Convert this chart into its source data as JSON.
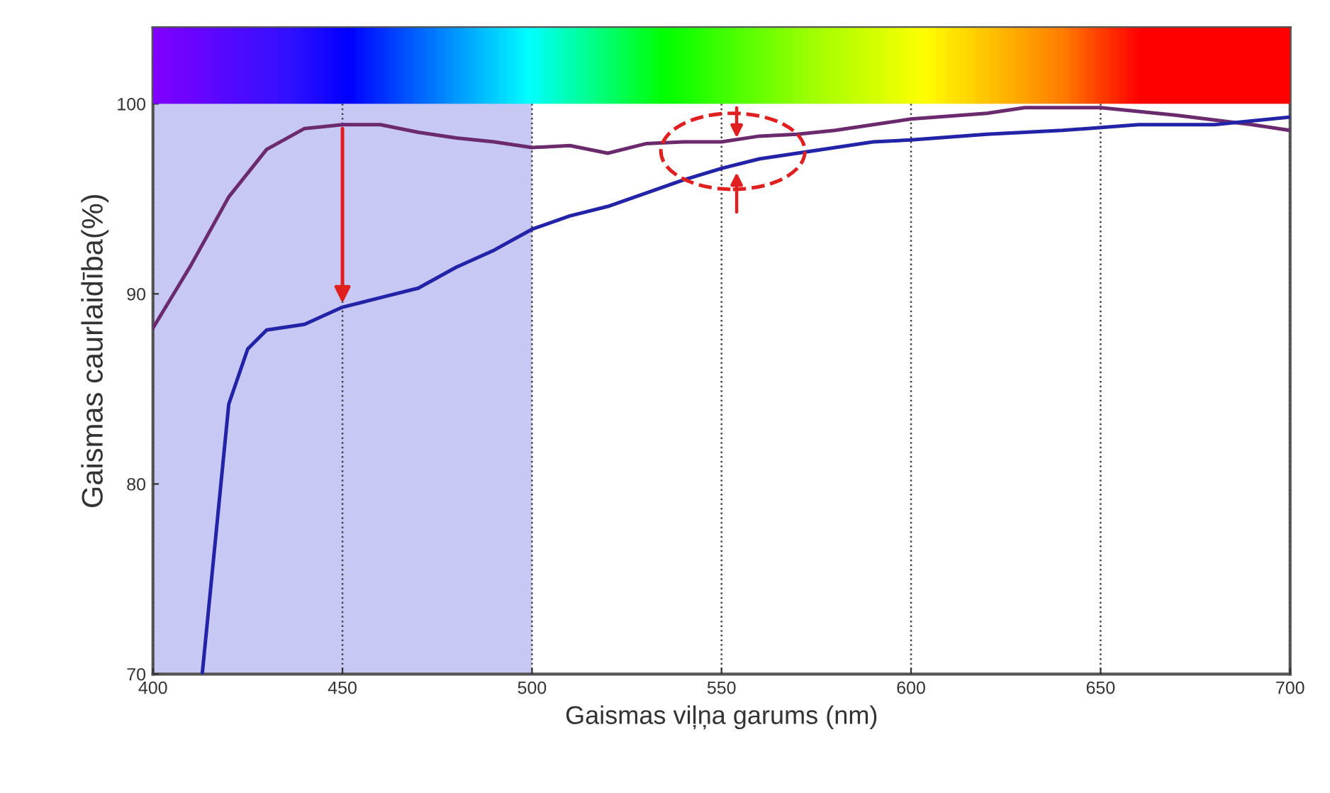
{
  "chart_data": {
    "type": "line",
    "xlabel": "Gaismas viļņa garums (nm)",
    "ylabel": "Gaismas caurlaidība(%)",
    "xlim": [
      400,
      700
    ],
    "ylim": [
      70,
      104
    ],
    "xticks": [
      400,
      450,
      500,
      550,
      600,
      650,
      700
    ],
    "yticks": [
      70,
      80,
      90,
      100
    ],
    "grid": "x",
    "line_style": "solid",
    "marker": "none",
    "bands": [
      {
        "axis": "x",
        "from": 400,
        "to": 500,
        "color": "#c8c8f4"
      }
    ],
    "series": [
      {
        "color": "#6b2a6e",
        "x": [
          400,
          410,
          420,
          430,
          440,
          450,
          460,
          470,
          480,
          490,
          500,
          510,
          520,
          530,
          540,
          550,
          560,
          570,
          580,
          590,
          600,
          620,
          630,
          650,
          670,
          690,
          700
        ],
        "values": [
          88.2,
          91.5,
          95.1,
          97.6,
          98.7,
          98.9,
          98.9,
          98.5,
          98.2,
          98.0,
          97.7,
          97.8,
          97.4,
          97.9,
          98.0,
          98.0,
          98.3,
          98.4,
          98.6,
          98.9,
          99.2,
          99.5,
          99.8,
          99.8,
          99.4,
          98.9,
          98.6
        ]
      },
      {
        "color": "#2323a8",
        "x": [
          413,
          420,
          425,
          430,
          440,
          450,
          460,
          470,
          480,
          490,
          500,
          510,
          520,
          530,
          540,
          550,
          560,
          570,
          580,
          590,
          600,
          620,
          640,
          660,
          680,
          700
        ],
        "values": [
          70,
          84.2,
          87.1,
          88.1,
          88.4,
          89.3,
          89.8,
          90.3,
          91.4,
          92.3,
          93.4,
          94.1,
          94.6,
          95.3,
          96.0,
          96.6,
          97.1,
          97.4,
          97.7,
          98.0,
          98.1,
          98.4,
          98.6,
          98.9,
          98.9,
          99.3
        ]
      }
    ]
  }
}
